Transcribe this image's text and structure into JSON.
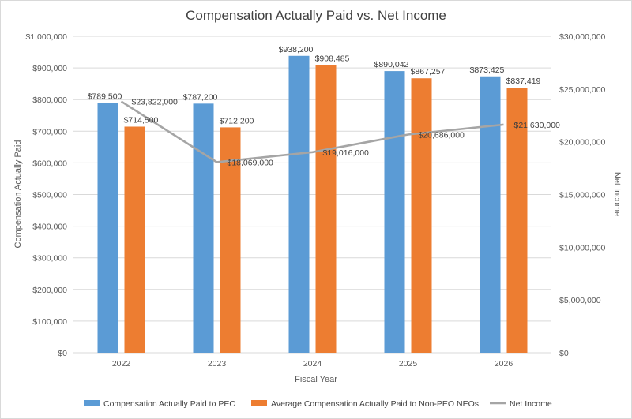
{
  "chart_data": {
    "type": "bar",
    "title": "Compensation Actually Paid vs. Net Income",
    "xlabel": "Fiscal Year",
    "ylabel": "Compensation Actually Paid",
    "y2label": "Net Income",
    "categories": [
      "2022",
      "2023",
      "2024",
      "2025",
      "2026"
    ],
    "ylim": [
      0,
      1000000
    ],
    "y2lim": [
      0,
      30000000
    ],
    "yticks": [
      "$0",
      "$100,000",
      "$200,000",
      "$300,000",
      "$400,000",
      "$500,000",
      "$600,000",
      "$700,000",
      "$800,000",
      "$900,000",
      "$1,000,000"
    ],
    "y2ticks": [
      "$0",
      "$5,000,000",
      "$10,000,000",
      "$15,000,000",
      "$20,000,000",
      "$25,000,000",
      "$30,000,000"
    ],
    "grid": true,
    "legend_position": "bottom",
    "series": [
      {
        "name": "Compensation Actually Paid to PEO",
        "type": "bar",
        "axis": "left",
        "color": "#5b9bd5",
        "values": [
          789500,
          787200,
          938200,
          890042,
          873425
        ],
        "labels": [
          "$789,500",
          "$787,200",
          "$938,200",
          "$890,042",
          "$873,425"
        ]
      },
      {
        "name": "Average Compensation Actually Paid to Non-PEO NEOs",
        "type": "bar",
        "axis": "left",
        "color": "#ed7d31",
        "values": [
          714500,
          712200,
          908485,
          867257,
          837419
        ],
        "labels": [
          "$714,500",
          "$712,200",
          "$908,485",
          "$867,257",
          "$837,419"
        ]
      },
      {
        "name": "Net Income",
        "type": "line",
        "axis": "right",
        "color": "#a5a5a5",
        "values": [
          23822000,
          18069000,
          19016000,
          20686000,
          21630000
        ],
        "labels": [
          "$23,822,000",
          "$18,069,000",
          "$19,016,000",
          "$20,686,000",
          "$21,630,000"
        ]
      }
    ]
  }
}
